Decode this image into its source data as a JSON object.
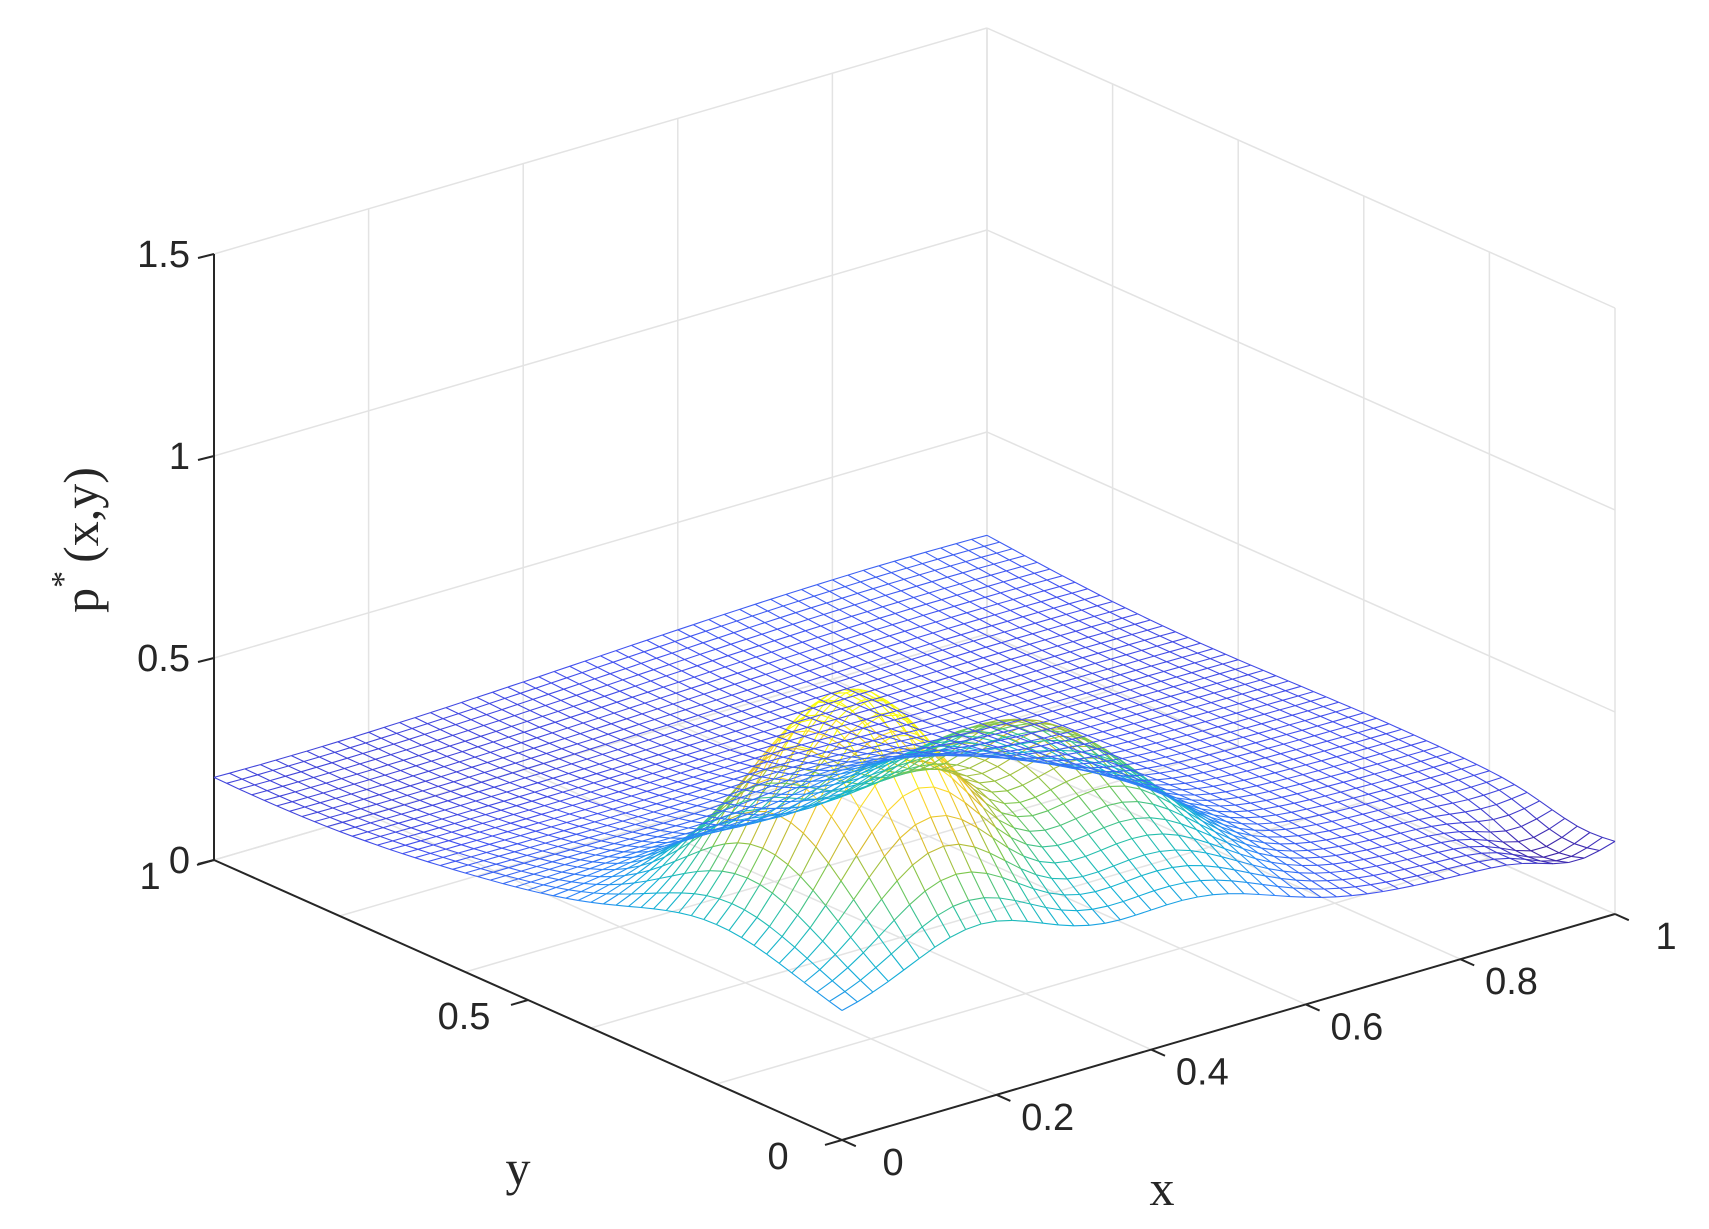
{
  "chart_data": {
    "type": "surface-mesh",
    "xlabel": "x",
    "ylabel": "y",
    "zlabel": "p",
    "zlabel_superscript": "*",
    "zlabel_suffix": "(x,y)",
    "xlim": [
      0,
      1
    ],
    "ylim": [
      0,
      1
    ],
    "zlim": [
      0,
      1.5
    ],
    "x_ticks": [
      0,
      0.2,
      0.4,
      0.6,
      0.8,
      1
    ],
    "x_tick_labels": [
      "0",
      "0.2",
      "0.4",
      "0.6",
      "0.8",
      "1"
    ],
    "y_ticks": [
      0,
      0.5,
      1
    ],
    "y_tick_labels": [
      "0",
      "0.5",
      "1"
    ],
    "z_ticks": [
      0,
      0.5,
      1,
      1.5
    ],
    "z_tick_labels": [
      "0",
      "0.5",
      "1",
      "1.5"
    ],
    "grid": true,
    "colormap": "parula",
    "color_range": [
      0.15,
      0.75
    ],
    "colormap_stops": [
      "#3e26a8",
      "#4352f0",
      "#2c87f8",
      "#12b1d6",
      "#2ac1a5",
      "#7bc74d",
      "#d7b92c",
      "#fcd52f",
      "#f9fb0e"
    ],
    "surface": {
      "description_peaks": [
        {
          "x": 0.18,
          "y": 0.2,
          "peak": 0.74
        },
        {
          "x": 0.45,
          "y": 0.25,
          "peak": 0.52
        }
      ],
      "baseline_range": [
        0.15,
        0.35
      ],
      "grid_resolution": 51
    }
  }
}
